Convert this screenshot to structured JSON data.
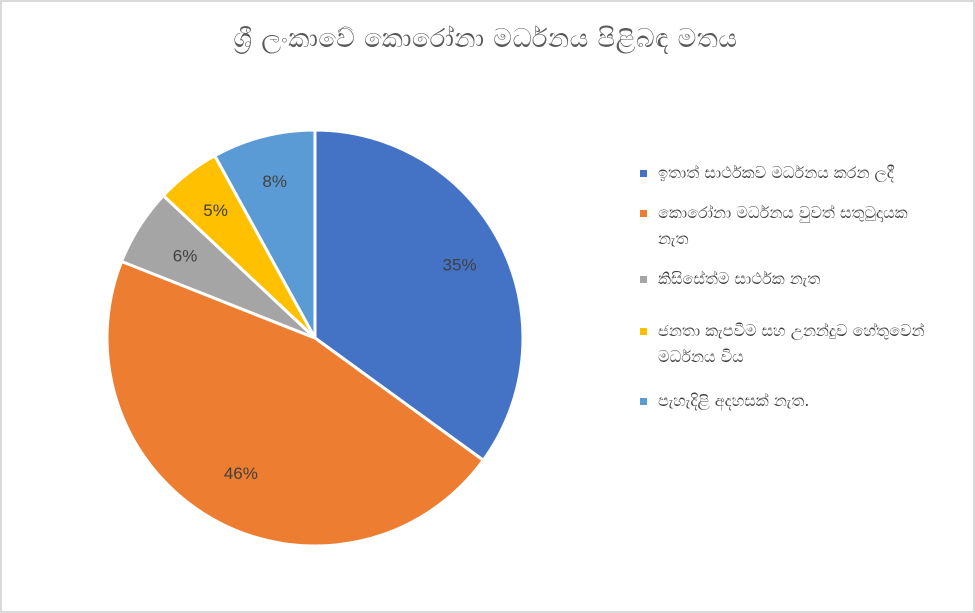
{
  "chart_data": {
    "type": "pie",
    "title": "ශ්‍රී ලංකාවේ කොරෝනා මර්ධනය පිළිබඳ මතය",
    "series": [
      {
        "values": [
          35,
          46,
          6,
          5,
          8
        ],
        "labels": [
          "35%",
          "46%",
          "6%",
          "5%",
          "8%"
        ],
        "categories": [
          "ඉතාත් සාර්ථකව මර්ධනය කරන ලදී",
          "කොරෝනා මර්ධනය වුවත් සතුටුදායක නැත",
          "කිසිසේත්ම සාර්ථක නැත",
          "ජනතා කැපවීම සහ උනන්දුව හේතුවෙන් මර්ධනය විය",
          "පැහැදිළි අදහසක් නැත."
        ],
        "colors": [
          "#4472c4",
          "#ed7d31",
          "#a5a5a5",
          "#ffc000",
          "#5b9bd5"
        ]
      }
    ],
    "legend": "right",
    "start_angle": "top, clockwise"
  }
}
